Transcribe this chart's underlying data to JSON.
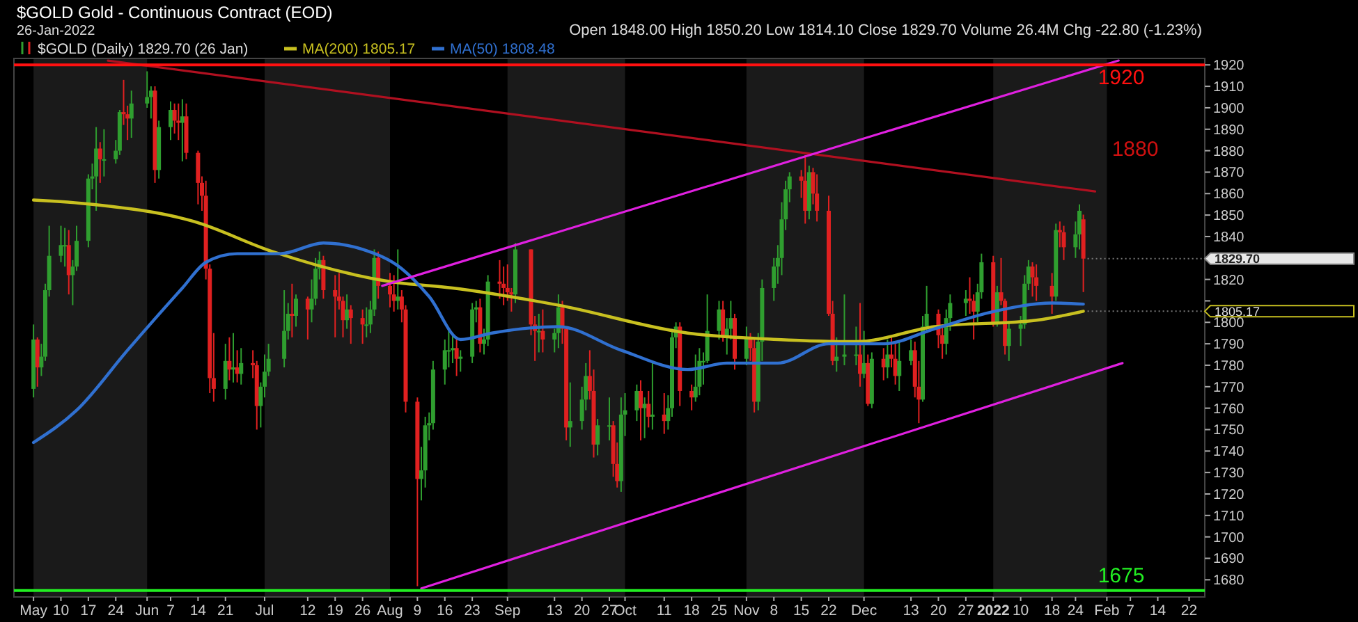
{
  "chart_data": {
    "type": "candlestick",
    "title": "$GOLD Gold - Continuous Contract (EOD)",
    "subtitle": "26-Jan-2022",
    "annotations": [
      "Open 1848.00 High 1850.20 Low 1814.10 Close 1829.70 Volume 26.4M Chg -22.80 (-1.23%)",
      "1880",
      {
        "text": "1829.70",
        "x": "2022-01-26",
        "y": 1829.7
      },
      {
        "text": "1805.17",
        "x": "2022-01-26",
        "y": 1805.17
      }
    ],
    "xlim": [
      "2021-04-28",
      "2022-02-26"
    ],
    "xticks": [
      {
        "value": "2021-05-03",
        "label": "May"
      },
      {
        "value": "2021-05-10",
        "label": "10"
      },
      {
        "value": "2021-05-17",
        "label": "17"
      },
      {
        "value": "2021-05-24",
        "label": "24"
      },
      {
        "value": "2021-06-01",
        "label": "Jun"
      },
      {
        "value": "2021-06-07",
        "label": "7"
      },
      {
        "value": "2021-06-14",
        "label": "14"
      },
      {
        "value": "2021-06-21",
        "label": "21"
      },
      {
        "value": "2021-07-01",
        "label": "Jul"
      },
      {
        "value": "2021-07-12",
        "label": "12"
      },
      {
        "value": "2021-07-19",
        "label": "19"
      },
      {
        "value": "2021-07-26",
        "label": "26"
      },
      {
        "value": "2021-08-02",
        "label": "Aug"
      },
      {
        "value": "2021-08-09",
        "label": "9"
      },
      {
        "value": "2021-08-16",
        "label": "16"
      },
      {
        "value": "2021-08-23",
        "label": "23"
      },
      {
        "value": "2021-09-01",
        "label": "Sep"
      },
      {
        "value": "2021-09-13",
        "label": "13"
      },
      {
        "value": "2021-09-20",
        "label": "20"
      },
      {
        "value": "2021-09-27",
        "label": "27"
      },
      {
        "value": "2021-10-01",
        "label": "Oct"
      },
      {
        "value": "2021-10-11",
        "label": "11"
      },
      {
        "value": "2021-10-18",
        "label": "18"
      },
      {
        "value": "2021-10-25",
        "label": "25"
      },
      {
        "value": "2021-11-01",
        "label": "Nov"
      },
      {
        "value": "2021-11-08",
        "label": "8"
      },
      {
        "value": "2021-11-15",
        "label": "15"
      },
      {
        "value": "2021-11-22",
        "label": "22"
      },
      {
        "value": "2021-12-01",
        "label": "Dec"
      },
      {
        "value": "2021-12-13",
        "label": "13"
      },
      {
        "value": "2021-12-20",
        "label": "20"
      },
      {
        "value": "2021-12-27",
        "label": "27"
      },
      {
        "value": "2022-01-03",
        "label": "2022"
      },
      {
        "value": "2022-01-10",
        "label": "10"
      },
      {
        "value": "2022-01-18",
        "label": "18"
      },
      {
        "value": "2022-01-24",
        "label": "24"
      },
      {
        "value": "2022-02-01",
        "label": "Feb"
      },
      {
        "value": "2022-02-07",
        "label": "7"
      },
      {
        "value": "2022-02-14",
        "label": "14"
      },
      {
        "value": "2022-02-22",
        "label": "22"
      }
    ],
    "ylim": [
      1672,
      1923
    ],
    "yticks": [
      1680,
      1690,
      1700,
      1710,
      1720,
      1730,
      1740,
      1750,
      1760,
      1770,
      1780,
      1790,
      1800,
      {
        "value": 1810,
        "label": null
      },
      1820,
      {
        "value": 1830,
        "label": null
      },
      1840,
      1850,
      1860,
      1870,
      1880,
      1890,
      1900,
      1910,
      1920
    ],
    "bands": [
      {
        "axis": "x",
        "from": "2021-05-03",
        "to": "2021-06-01",
        "color": "#1a1a1a"
      },
      {
        "axis": "x",
        "from": "2021-07-01",
        "to": "2021-08-02",
        "color": "#1a1a1a"
      },
      {
        "axis": "x",
        "from": "2021-09-01",
        "to": "2021-10-01",
        "color": "#1a1a1a"
      },
      {
        "axis": "x",
        "from": "2021-11-01",
        "to": "2021-12-01",
        "color": "#1a1a1a"
      },
      {
        "axis": "x",
        "from": "2022-01-03",
        "to": "2022-02-01",
        "color": "#1a1a1a"
      }
    ],
    "ref_lines": [
      {
        "axis": "y",
        "value": 1920,
        "label": "1920",
        "color": "#ff1010"
      },
      {
        "axis": "y",
        "value": 1675,
        "label": "1675",
        "color": "#22ee22"
      }
    ],
    "legend": "top left",
    "series": [
      {
        "name": "$GOLD (Daily) 1829.70 (26 Jan)",
        "x": [
          "2021-05-03",
          "2021-05-04",
          "2021-05-05",
          "2021-05-06",
          "2021-05-07",
          "2021-05-10",
          "2021-05-11",
          "2021-05-12",
          "2021-05-13",
          "2021-05-14",
          "2021-05-17",
          "2021-05-18",
          "2021-05-19",
          "2021-05-20",
          "2021-05-21",
          "2021-05-24",
          "2021-05-25",
          "2021-05-26",
          "2021-05-27",
          "2021-05-28",
          "2021-06-01",
          "2021-06-02",
          "2021-06-03",
          "2021-06-04",
          "2021-06-07",
          "2021-06-08",
          "2021-06-09",
          "2021-06-10",
          "2021-06-11",
          "2021-06-14",
          "2021-06-15",
          "2021-06-16",
          "2021-06-17",
          "2021-06-18",
          "2021-06-21",
          "2021-06-22",
          "2021-06-23",
          "2021-06-24",
          "2021-06-25",
          "2021-06-28",
          "2021-06-29",
          "2021-06-30",
          "2021-07-01",
          "2021-07-02",
          "2021-07-06",
          "2021-07-07",
          "2021-07-08",
          "2021-07-09",
          "2021-07-12",
          "2021-07-13",
          "2021-07-14",
          "2021-07-15",
          "2021-07-16",
          "2021-07-19",
          "2021-07-20",
          "2021-07-21",
          "2021-07-22",
          "2021-07-23",
          "2021-07-26",
          "2021-07-27",
          "2021-07-28",
          "2021-07-29",
          "2021-07-30",
          "2021-08-02",
          "2021-08-03",
          "2021-08-04",
          "2021-08-05",
          "2021-08-06",
          "2021-08-09",
          "2021-08-10",
          "2021-08-11",
          "2021-08-12",
          "2021-08-13",
          "2021-08-16",
          "2021-08-17",
          "2021-08-18",
          "2021-08-19",
          "2021-08-20",
          "2021-08-23",
          "2021-08-24",
          "2021-08-25",
          "2021-08-26",
          "2021-08-27",
          "2021-08-30",
          "2021-08-31",
          "2021-09-01",
          "2021-09-02",
          "2021-09-03",
          "2021-09-07",
          "2021-09-08",
          "2021-09-09",
          "2021-09-10",
          "2021-09-13",
          "2021-09-14",
          "2021-09-15",
          "2021-09-16",
          "2021-09-17",
          "2021-09-20",
          "2021-09-21",
          "2021-09-22",
          "2021-09-23",
          "2021-09-24",
          "2021-09-27",
          "2021-09-28",
          "2021-09-29",
          "2021-09-30",
          "2021-10-01",
          "2021-10-04",
          "2021-10-05",
          "2021-10-06",
          "2021-10-07",
          "2021-10-08",
          "2021-10-11",
          "2021-10-12",
          "2021-10-13",
          "2021-10-14",
          "2021-10-15",
          "2021-10-18",
          "2021-10-19",
          "2021-10-20",
          "2021-10-21",
          "2021-10-22",
          "2021-10-25",
          "2021-10-26",
          "2021-10-27",
          "2021-10-28",
          "2021-10-29",
          "2021-11-01",
          "2021-11-02",
          "2021-11-03",
          "2021-11-04",
          "2021-11-05",
          "2021-11-08",
          "2021-11-09",
          "2021-11-10",
          "2021-11-11",
          "2021-11-12",
          "2021-11-15",
          "2021-11-16",
          "2021-11-17",
          "2021-11-18",
          "2021-11-19",
          "2021-11-22",
          "2021-11-23",
          "2021-11-24",
          "2021-11-26",
          "2021-11-29",
          "2021-11-30",
          "2021-12-01",
          "2021-12-02",
          "2021-12-03",
          "2021-12-06",
          "2021-12-07",
          "2021-12-08",
          "2021-12-09",
          "2021-12-10",
          "2021-12-13",
          "2021-12-14",
          "2021-12-15",
          "2021-12-16",
          "2021-12-17",
          "2021-12-20",
          "2021-12-21",
          "2021-12-22",
          "2021-12-23",
          "2021-12-27",
          "2021-12-28",
          "2021-12-29",
          "2021-12-30",
          "2021-12-31",
          "2022-01-03",
          "2022-01-04",
          "2022-01-05",
          "2022-01-06",
          "2022-01-07",
          "2022-01-10",
          "2022-01-11",
          "2022-01-12",
          "2022-01-13",
          "2022-01-14",
          "2022-01-18",
          "2022-01-19",
          "2022-01-20",
          "2022-01-21",
          "2022-01-24",
          "2022-01-25",
          "2022-01-26"
        ],
        "ohlc": [
          [
            1769,
            1799,
            1765,
            1792
          ],
          [
            1792,
            1793,
            1770,
            1779
          ],
          [
            1779,
            1790,
            1775,
            1784
          ],
          [
            1784,
            1818,
            1782,
            1815
          ],
          [
            1815,
            1845,
            1812,
            1831
          ],
          [
            1831,
            1845,
            1828,
            1836
          ],
          [
            1836,
            1844,
            1826,
            1836
          ],
          [
            1836,
            1843,
            1813,
            1822
          ],
          [
            1822,
            1829,
            1808,
            1826
          ],
          [
            1826,
            1845,
            1824,
            1838
          ],
          [
            1838,
            1869,
            1835,
            1867
          ],
          [
            1867,
            1874,
            1862,
            1868
          ],
          [
            1868,
            1891,
            1852,
            1881
          ],
          [
            1881,
            1884,
            1865,
            1876
          ],
          [
            1876,
            1890,
            1868,
            1876
          ],
          [
            1876,
            1885,
            1874,
            1880
          ],
          [
            1880,
            1899,
            1878,
            1898
          ],
          [
            1898,
            1913,
            1892,
            1897
          ],
          [
            1897,
            1901,
            1885,
            1895
          ],
          [
            1895,
            1908,
            1886,
            1902
          ],
          [
            1902,
            1917,
            1900,
            1905
          ],
          [
            1905,
            1910,
            1895,
            1908
          ],
          [
            1908,
            1910,
            1865,
            1871
          ],
          [
            1871,
            1894,
            1867,
            1891
          ],
          [
            1891,
            1903,
            1885,
            1899
          ],
          [
            1899,
            1902,
            1888,
            1894
          ],
          [
            1894,
            1902,
            1885,
            1893
          ],
          [
            1893,
            1904,
            1875,
            1896
          ],
          [
            1896,
            1902,
            1876,
            1879
          ],
          [
            1879,
            1880,
            1855,
            1865
          ],
          [
            1865,
            1868,
            1852,
            1859
          ],
          [
            1859,
            1866,
            1820,
            1825
          ],
          [
            1825,
            1827,
            1767,
            1774
          ],
          [
            1774,
            1795,
            1763,
            1769
          ],
          [
            1769,
            1790,
            1764,
            1782
          ],
          [
            1782,
            1793,
            1773,
            1778
          ],
          [
            1778,
            1795,
            1772,
            1779
          ],
          [
            1779,
            1787,
            1772,
            1776
          ],
          [
            1776,
            1788,
            1771,
            1781
          ],
          [
            1781,
            1787,
            1774,
            1780
          ],
          [
            1780,
            1782,
            1750,
            1761
          ],
          [
            1761,
            1772,
            1751,
            1770
          ],
          [
            1770,
            1785,
            1765,
            1777
          ],
          [
            1777,
            1790,
            1775,
            1783
          ],
          [
            1783,
            1815,
            1779,
            1796
          ],
          [
            1796,
            1809,
            1792,
            1804
          ],
          [
            1804,
            1818,
            1793,
            1803
          ],
          [
            1803,
            1813,
            1798,
            1811
          ],
          [
            1811,
            1812,
            1792,
            1806
          ],
          [
            1806,
            1820,
            1800,
            1811
          ],
          [
            1811,
            1830,
            1808,
            1825
          ],
          [
            1825,
            1833,
            1820,
            1829
          ],
          [
            1829,
            1831,
            1811,
            1815
          ],
          [
            1815,
            1822,
            1793,
            1812
          ],
          [
            1812,
            1823,
            1806,
            1810
          ],
          [
            1810,
            1812,
            1793,
            1801
          ],
          [
            1801,
            1813,
            1797,
            1806
          ],
          [
            1806,
            1808,
            1790,
            1802
          ],
          [
            1802,
            1806,
            1790,
            1799
          ],
          [
            1799,
            1807,
            1793,
            1799
          ],
          [
            1799,
            1810,
            1795,
            1806
          ],
          [
            1806,
            1834,
            1803,
            1830
          ],
          [
            1830,
            1833,
            1811,
            1817
          ],
          [
            1817,
            1823,
            1807,
            1813
          ],
          [
            1813,
            1822,
            1805,
            1810
          ],
          [
            1810,
            1834,
            1806,
            1812
          ],
          [
            1812,
            1815,
            1800,
            1806
          ],
          [
            1806,
            1808,
            1758,
            1763
          ],
          [
            1763,
            1765,
            1677,
            1727
          ],
          [
            1727,
            1742,
            1717,
            1731
          ],
          [
            1731,
            1756,
            1723,
            1752
          ],
          [
            1752,
            1758,
            1745,
            1753
          ],
          [
            1753,
            1782,
            1750,
            1778
          ],
          [
            1778,
            1792,
            1771,
            1787
          ],
          [
            1787,
            1797,
            1779,
            1787
          ],
          [
            1787,
            1795,
            1781,
            1788
          ],
          [
            1788,
            1792,
            1775,
            1783
          ],
          [
            1783,
            1787,
            1777,
            1784
          ],
          [
            1784,
            1809,
            1781,
            1806
          ],
          [
            1806,
            1810,
            1800,
            1807
          ],
          [
            1807,
            1811,
            1786,
            1790
          ],
          [
            1790,
            1797,
            1785,
            1792
          ],
          [
            1792,
            1822,
            1789,
            1819
          ],
          [
            1819,
            1829,
            1811,
            1818
          ],
          [
            1818,
            1826,
            1808,
            1816
          ],
          [
            1816,
            1827,
            1810,
            1814
          ],
          [
            1814,
            1816,
            1805,
            1813
          ],
          [
            1813,
            1837,
            1809,
            1834
          ],
          [
            1834,
            1834,
            1794,
            1799
          ],
          [
            1799,
            1803,
            1782,
            1796
          ],
          [
            1796,
            1804,
            1786,
            1796
          ],
          [
            1796,
            1806,
            1786,
            1792
          ],
          [
            1792,
            1797,
            1786,
            1795
          ],
          [
            1795,
            1813,
            1788,
            1807
          ],
          [
            1807,
            1810,
            1790,
            1797
          ],
          [
            1797,
            1798,
            1745,
            1751
          ],
          [
            1751,
            1772,
            1742,
            1754
          ],
          [
            1754,
            1770,
            1750,
            1764
          ],
          [
            1764,
            1781,
            1759,
            1775
          ],
          [
            1775,
            1787,
            1764,
            1768
          ],
          [
            1768,
            1778,
            1737,
            1743
          ],
          [
            1743,
            1755,
            1738,
            1752
          ],
          [
            1752,
            1765,
            1745,
            1752
          ],
          [
            1752,
            1754,
            1728,
            1734
          ],
          [
            1734,
            1744,
            1723,
            1726
          ],
          [
            1726,
            1765,
            1721,
            1757
          ],
          [
            1757,
            1767,
            1747,
            1759
          ],
          [
            1759,
            1771,
            1754,
            1768
          ],
          [
            1768,
            1773,
            1745,
            1760
          ],
          [
            1760,
            1765,
            1746,
            1762
          ],
          [
            1762,
            1768,
            1751,
            1756
          ],
          [
            1756,
            1781,
            1750,
            1757
          ],
          [
            1757,
            1767,
            1748,
            1754
          ],
          [
            1754,
            1766,
            1750,
            1760
          ],
          [
            1760,
            1797,
            1756,
            1793
          ],
          [
            1793,
            1800,
            1788,
            1798
          ],
          [
            1798,
            1800,
            1761,
            1768
          ],
          [
            1768,
            1771,
            1759,
            1765
          ],
          [
            1765,
            1785,
            1763,
            1770
          ],
          [
            1770,
            1788,
            1766,
            1782
          ],
          [
            1782,
            1786,
            1771,
            1782
          ],
          [
            1782,
            1813,
            1781,
            1796
          ],
          [
            1796,
            1810,
            1792,
            1806
          ],
          [
            1806,
            1810,
            1791,
            1793
          ],
          [
            1793,
            1802,
            1785,
            1797
          ],
          [
            1797,
            1810,
            1792,
            1802
          ],
          [
            1802,
            1804,
            1778,
            1783
          ],
          [
            1783,
            1798,
            1780,
            1793
          ],
          [
            1793,
            1795,
            1782,
            1788
          ],
          [
            1788,
            1793,
            1758,
            1763
          ],
          [
            1763,
            1795,
            1759,
            1791
          ],
          [
            1791,
            1820,
            1782,
            1816
          ],
          [
            1816,
            1830,
            1810,
            1826
          ],
          [
            1826,
            1836,
            1818,
            1830
          ],
          [
            1830,
            1856,
            1822,
            1848
          ],
          [
            1848,
            1866,
            1843,
            1862
          ],
          [
            1862,
            1870,
            1856,
            1868
          ],
          [
            1868,
            1871,
            1858,
            1866
          ],
          [
            1866,
            1878,
            1846,
            1852
          ],
          [
            1852,
            1873,
            1848,
            1870
          ],
          [
            1870,
            1872,
            1855,
            1860
          ],
          [
            1860,
            1869,
            1847,
            1852
          ],
          [
            1852,
            1859,
            1803,
            1804
          ],
          [
            1804,
            1810,
            1780,
            1782
          ],
          [
            1782,
            1793,
            1777,
            1784
          ],
          [
            1784,
            1813,
            1780,
            1785
          ],
          [
            1785,
            1798,
            1780,
            1785
          ],
          [
            1785,
            1809,
            1770,
            1776
          ],
          [
            1776,
            1796,
            1774,
            1781
          ],
          [
            1781,
            1785,
            1761,
            1762
          ],
          [
            1762,
            1786,
            1760,
            1783
          ],
          [
            1783,
            1788,
            1773,
            1779
          ],
          [
            1779,
            1792,
            1774,
            1785
          ],
          [
            1785,
            1793,
            1779,
            1783
          ],
          [
            1783,
            1790,
            1771,
            1775
          ],
          [
            1775,
            1791,
            1768,
            1782
          ],
          [
            1782,
            1792,
            1780,
            1787
          ],
          [
            1787,
            1791,
            1765,
            1770
          ],
          [
            1770,
            1782,
            1753,
            1764
          ],
          [
            1764,
            1803,
            1763,
            1798
          ],
          [
            1798,
            1817,
            1795,
            1804
          ],
          [
            1804,
            1806,
            1788,
            1794
          ],
          [
            1794,
            1799,
            1783,
            1790
          ],
          [
            1790,
            1806,
            1785,
            1802
          ],
          [
            1802,
            1813,
            1796,
            1809
          ],
          [
            1809,
            1815,
            1803,
            1811
          ],
          [
            1811,
            1821,
            1804,
            1810
          ],
          [
            1810,
            1813,
            1792,
            1805
          ],
          [
            1805,
            1818,
            1800,
            1814
          ],
          [
            1814,
            1832,
            1811,
            1828
          ],
          [
            1828,
            1831,
            1798,
            1800
          ],
          [
            1800,
            1817,
            1798,
            1814
          ],
          [
            1814,
            1830,
            1808,
            1810
          ],
          [
            1810,
            1811,
            1785,
            1789
          ],
          [
            1789,
            1800,
            1782,
            1797
          ],
          [
            1797,
            1803,
            1789,
            1799
          ],
          [
            1799,
            1822,
            1797,
            1818
          ],
          [
            1818,
            1829,
            1815,
            1826
          ],
          [
            1826,
            1828,
            1812,
            1821
          ],
          [
            1821,
            1827,
            1810,
            1817
          ],
          [
            1817,
            1823,
            1804,
            1812
          ],
          [
            1812,
            1846,
            1810,
            1843
          ],
          [
            1843,
            1847,
            1835,
            1842
          ],
          [
            1842,
            1845,
            1829,
            1835
          ],
          [
            1835,
            1847,
            1830,
            1841
          ],
          [
            1841,
            1855,
            1834,
            1852
          ],
          [
            1848,
            1850.2,
            1814.1,
            1829.7
          ]
        ]
      },
      {
        "name": "MA(200) 1805.17",
        "type": "line",
        "color": "#c8c020",
        "x": [
          "2021-05-03",
          "2021-05-18",
          "2021-06-13",
          "2021-07-03",
          "2021-08-02",
          "2021-08-18",
          "2021-09-14",
          "2021-10-17",
          "2021-11-09",
          "2021-11-29",
          "2021-12-19",
          "2022-01-14",
          "2022-01-26"
        ],
        "values": [
          1857,
          1855,
          1847,
          1833,
          1819,
          1816,
          1808,
          1795,
          1792,
          1791,
          1798,
          1801,
          1805.17
        ]
      },
      {
        "name": "MA(50) 1808.48",
        "type": "line",
        "color": "#3070d0",
        "x": [
          "2021-05-03",
          "2021-05-14",
          "2021-05-27",
          "2021-06-10",
          "2021-06-16",
          "2021-06-24",
          "2021-07-05",
          "2021-07-16",
          "2021-07-26",
          "2021-08-05",
          "2021-08-12",
          "2021-08-20",
          "2021-08-28",
          "2021-09-14",
          "2021-09-30",
          "2021-10-17",
          "2021-10-27",
          "2021-11-09",
          "2021-11-22",
          "2021-12-06",
          "2021-12-19",
          "2022-01-03",
          "2022-01-18",
          "2022-01-26"
        ],
        "values": [
          1744,
          1759,
          1787,
          1816,
          1828,
          1832,
          1832,
          1837,
          1834,
          1825,
          1812,
          1792,
          1795,
          1798,
          1787,
          1778,
          1781,
          1781,
          1790,
          1790,
          1797,
          1805,
          1809,
          1808.48
        ]
      },
      {
        "type": "line",
        "color": "#b01020",
        "x": [
          "2021-05-22",
          "2022-01-29"
        ],
        "values": [
          1922,
          1861
        ]
      },
      {
        "type": "line",
        "color": "#e020e0",
        "x": [
          "2021-07-31",
          "2022-02-04"
        ],
        "values": [
          1817,
          1922
        ]
      },
      {
        "type": "line",
        "color": "#e020e0",
        "x": [
          "2021-08-10",
          "2022-02-05"
        ],
        "values": [
          1676,
          1781
        ]
      }
    ]
  }
}
